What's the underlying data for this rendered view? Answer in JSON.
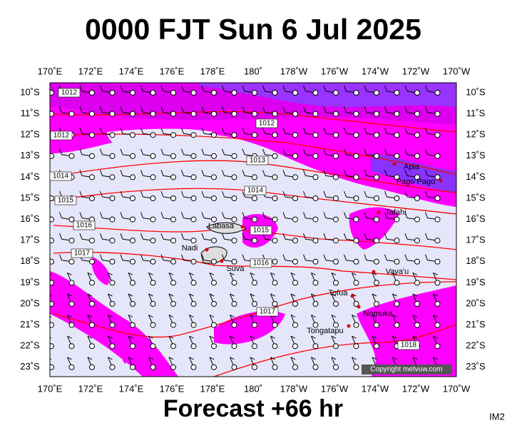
{
  "header": {
    "title": "0000 FJT Sun 6 Jul 2025"
  },
  "map": {
    "lon_labels": [
      "170˚E",
      "172˚E",
      "174˚E",
      "176˚E",
      "178˚E",
      "180˚",
      "178˚W",
      "176˚W",
      "174˚W",
      "172˚W",
      "170˚W"
    ],
    "lat_labels": [
      "10˚S",
      "11˚S",
      "12˚S",
      "13˚S",
      "14˚S",
      "15˚S",
      "16˚S",
      "17˚S",
      "18˚S",
      "19˚S",
      "20˚S",
      "21˚S",
      "22˚S",
      "23˚S"
    ],
    "isobar_labels": [
      "1012",
      "1012",
      "1014",
      "1015",
      "1016",
      "1017",
      "1012",
      "1013",
      "1014",
      "1015",
      "1016",
      "1017",
      "1018"
    ],
    "places": [
      "Labasa",
      "Nadi",
      "Suva",
      "Tafahi",
      "Vava'u",
      "Tofua",
      "Nomuka",
      "Tongatapu",
      "Apia",
      "Pago Pago"
    ],
    "copyright": "Copyright metvuw.com"
  },
  "footer": {
    "forecast": "Forecast +66 hr",
    "code": "IM2"
  }
}
